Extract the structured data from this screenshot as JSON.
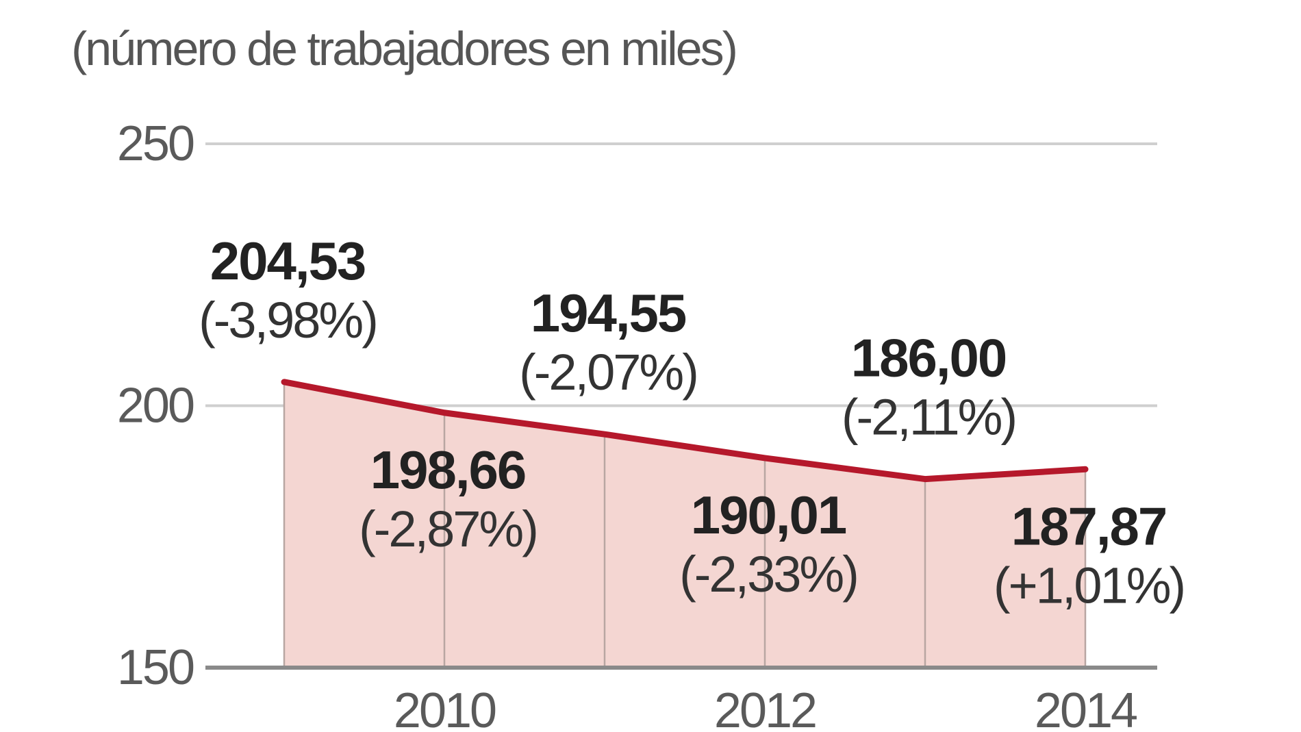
{
  "chart_data": {
    "type": "area",
    "subtitle": "(número de trabajadores en miles)",
    "x": [
      2009,
      2010,
      2011,
      2012,
      2013,
      2014
    ],
    "values": [
      204.53,
      198.66,
      194.55,
      190.01,
      186.0,
      187.87
    ],
    "value_labels": [
      "204,53",
      "198,66",
      "194,55",
      "190,01",
      "186,00",
      "187,87"
    ],
    "change_labels": [
      "(-3,98%)",
      "(-2,87%)",
      "(-2,07%)",
      "(-2,33%)",
      "(-2,11%)",
      "(+1,01%)"
    ],
    "x_tick_labels": [
      {
        "x": 2010,
        "label": "2010"
      },
      {
        "x": 2012,
        "label": "2012"
      },
      {
        "x": 2014,
        "label": "2014"
      }
    ],
    "y_tick_labels": [
      {
        "y": 250,
        "label": "250"
      },
      {
        "y": 200,
        "label": "200"
      },
      {
        "y": 150,
        "label": "150"
      }
    ],
    "ylim": [
      150,
      250
    ],
    "grid": true,
    "colors": {
      "line": "#b5182b",
      "fill": "#f4d6d2",
      "grid": "#cfcfcf",
      "baseline": "#8a8a8a"
    }
  }
}
